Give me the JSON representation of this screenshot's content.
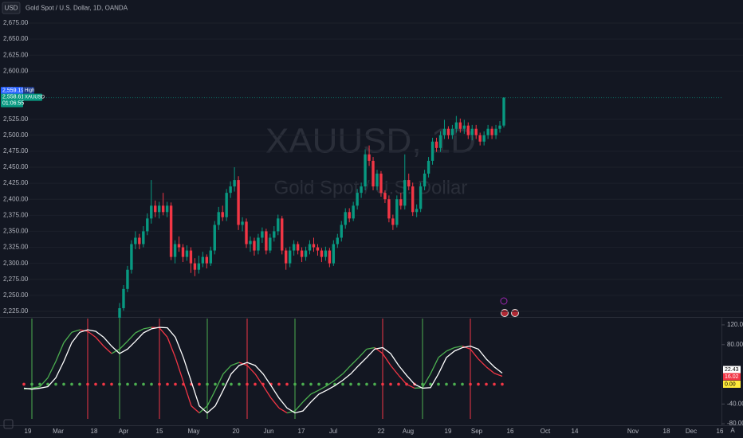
{
  "chart_data": [
    {
      "type": "candlestick",
      "currency": "USD",
      "title": "Gold Spot / U.S. Dollar, 1D, OANDA",
      "watermark": "XAUUSD, 1D",
      "watermark_sub": "Gold Spot / U.S. Dollar",
      "symbol": "XAUUSD",
      "high_text": "High",
      "high_label": {
        "value": 2559.19,
        "label": "2,559.19"
      },
      "last_label": {
        "value": 2558.61,
        "label": "2,558.61"
      },
      "countdown": "01:06:55",
      "up_color": "#089981",
      "down_color": "#f23645",
      "ylim": [
        2216.3,
        2711
      ],
      "yticks": [
        {
          "value": 2675,
          "label": "2,675.00"
        },
        {
          "value": 2650,
          "label": "2,650.00"
        },
        {
          "value": 2625,
          "label": "2,625.00"
        },
        {
          "value": 2600,
          "label": "2,600.00"
        },
        {
          "value": 2525,
          "label": "2,525.00"
        },
        {
          "value": 2500,
          "label": "2,500.00"
        },
        {
          "value": 2475,
          "label": "2,475.00"
        },
        {
          "value": 2450,
          "label": "2,450.00"
        },
        {
          "value": 2425,
          "label": "2,425.00"
        },
        {
          "value": 2400,
          "label": "2,400.00"
        },
        {
          "value": 2375,
          "label": "2,375.00"
        },
        {
          "value": 2350,
          "label": "2,350.00"
        },
        {
          "value": 2325,
          "label": "2,325.00"
        },
        {
          "value": 2300,
          "label": "2,300.00"
        },
        {
          "value": 2275,
          "label": "2,275.00"
        },
        {
          "value": 2250,
          "label": "2,250.00"
        },
        {
          "value": 2225,
          "label": "2,225.00"
        }
      ],
      "grid": true,
      "candles": [
        [
          2215,
          2238,
          2210,
          2230
        ],
        [
          2230,
          2266,
          2226,
          2260
        ],
        [
          2260,
          2296,
          2255,
          2290
        ],
        [
          2290,
          2336,
          2284,
          2330
        ],
        [
          2330,
          2350,
          2322,
          2340
        ],
        [
          2340,
          2346,
          2322,
          2330
        ],
        [
          2330,
          2358,
          2325,
          2350
        ],
        [
          2350,
          2378,
          2344,
          2370
        ],
        [
          2370,
          2430,
          2362,
          2390
        ],
        [
          2390,
          2398,
          2372,
          2380
        ],
        [
          2380,
          2396,
          2370,
          2390
        ],
        [
          2390,
          2410,
          2375,
          2380
        ],
        [
          2380,
          2396,
          2372,
          2390
        ],
        [
          2390,
          2395,
          2305,
          2310
        ],
        [
          2310,
          2336,
          2300,
          2330
        ],
        [
          2330,
          2342,
          2318,
          2325
        ],
        [
          2325,
          2330,
          2302,
          2310
        ],
        [
          2310,
          2328,
          2304,
          2320
        ],
        [
          2320,
          2325,
          2285,
          2300
        ],
        [
          2300,
          2308,
          2280,
          2290
        ],
        [
          2290,
          2312,
          2284,
          2300
        ],
        [
          2300,
          2318,
          2294,
          2310
        ],
        [
          2310,
          2314,
          2292,
          2300
        ],
        [
          2300,
          2326,
          2296,
          2320
        ],
        [
          2320,
          2366,
          2314,
          2360
        ],
        [
          2360,
          2388,
          2352,
          2380
        ],
        [
          2380,
          2390,
          2366,
          2372
        ],
        [
          2372,
          2416,
          2366,
          2410
        ],
        [
          2410,
          2428,
          2402,
          2420
        ],
        [
          2420,
          2450,
          2412,
          2430
        ],
        [
          2430,
          2436,
          2352,
          2360
        ],
        [
          2360,
          2372,
          2350,
          2365
        ],
        [
          2365,
          2370,
          2324,
          2330
        ],
        [
          2330,
          2342,
          2318,
          2335
        ],
        [
          2335,
          2340,
          2312,
          2320
        ],
        [
          2320,
          2346,
          2314,
          2340
        ],
        [
          2340,
          2356,
          2332,
          2350
        ],
        [
          2350,
          2354,
          2314,
          2320
        ],
        [
          2320,
          2346,
          2316,
          2340
        ],
        [
          2340,
          2358,
          2334,
          2350
        ],
        [
          2350,
          2376,
          2344,
          2370
        ],
        [
          2370,
          2374,
          2314,
          2320
        ],
        [
          2320,
          2324,
          2290,
          2300
        ],
        [
          2300,
          2326,
          2294,
          2320
        ],
        [
          2320,
          2336,
          2312,
          2330
        ],
        [
          2330,
          2334,
          2314,
          2320
        ],
        [
          2320,
          2325,
          2302,
          2310
        ],
        [
          2310,
          2326,
          2304,
          2320
        ],
        [
          2320,
          2336,
          2314,
          2330
        ],
        [
          2330,
          2340,
          2318,
          2325
        ],
        [
          2325,
          2330,
          2312,
          2320
        ],
        [
          2320,
          2324,
          2302,
          2310
        ],
        [
          2310,
          2326,
          2304,
          2320
        ],
        [
          2320,
          2324,
          2294,
          2300
        ],
        [
          2300,
          2336,
          2296,
          2330
        ],
        [
          2330,
          2346,
          2324,
          2340
        ],
        [
          2340,
          2366,
          2334,
          2360
        ],
        [
          2360,
          2386,
          2354,
          2380
        ],
        [
          2380,
          2386,
          2364,
          2370
        ],
        [
          2370,
          2396,
          2366,
          2390
        ],
        [
          2390,
          2416,
          2384,
          2410
        ],
        [
          2410,
          2426,
          2402,
          2420
        ],
        [
          2420,
          2478,
          2414,
          2470
        ],
        [
          2470,
          2484,
          2452,
          2460
        ],
        [
          2460,
          2466,
          2414,
          2420
        ],
        [
          2420,
          2446,
          2414,
          2440
        ],
        [
          2440,
          2444,
          2404,
          2410
        ],
        [
          2410,
          2414,
          2394,
          2400
        ],
        [
          2400,
          2406,
          2364,
          2370
        ],
        [
          2370,
          2376,
          2352,
          2360
        ],
        [
          2360,
          2406,
          2356,
          2400
        ],
        [
          2400,
          2410,
          2384,
          2390
        ],
        [
          2390,
          2470,
          2384,
          2430
        ],
        [
          2430,
          2440,
          2414,
          2420
        ],
        [
          2420,
          2426,
          2374,
          2380
        ],
        [
          2380,
          2392,
          2372,
          2385
        ],
        [
          2385,
          2426,
          2380,
          2420
        ],
        [
          2420,
          2446,
          2414,
          2440
        ],
        [
          2440,
          2466,
          2434,
          2460
        ],
        [
          2460,
          2496,
          2454,
          2490
        ],
        [
          2490,
          2496,
          2474,
          2480
        ],
        [
          2480,
          2506,
          2474,
          2500
        ],
        [
          2500,
          2524,
          2494,
          2510
        ],
        [
          2510,
          2514,
          2494,
          2500
        ],
        [
          2500,
          2516,
          2494,
          2510
        ],
        [
          2510,
          2530,
          2504,
          2520
        ],
        [
          2520,
          2526,
          2504,
          2510
        ],
        [
          2510,
          2524,
          2502,
          2515
        ],
        [
          2515,
          2520,
          2494,
          2500
        ],
        [
          2500,
          2516,
          2492,
          2510
        ],
        [
          2510,
          2516,
          2494,
          2500
        ],
        [
          2500,
          2504,
          2484,
          2490
        ],
        [
          2490,
          2506,
          2484,
          2500
        ],
        [
          2500,
          2516,
          2494,
          2510
        ],
        [
          2510,
          2514,
          2494,
          2500
        ],
        [
          2500,
          2516,
          2494,
          2510
        ],
        [
          2510,
          2522,
          2504,
          2515
        ],
        [
          2515,
          2559.19,
          2512,
          2558.61
        ]
      ]
    },
    {
      "type": "line",
      "ylim": [
        -83,
        136
      ],
      "yticks": [
        {
          "value": 120,
          "label": "120.00"
        },
        {
          "value": 80,
          "label": "80.00"
        },
        {
          "value": -40,
          "label": "-40.00"
        },
        {
          "value": -80,
          "label": "-80.00"
        }
      ],
      "series": [
        {
          "color": "#ffffff",
          "value_label": "22.43",
          "values": [
            -8,
            -10,
            -8,
            -5,
            13,
            46,
            84,
            105,
            110,
            107,
            95,
            77,
            62,
            71,
            87,
            104,
            112,
            115,
            114,
            95,
            54,
            5,
            -44,
            -58,
            -44,
            -12,
            21,
            38,
            44,
            38,
            21,
            -3,
            -28,
            -48,
            -58,
            -54,
            -36,
            -20,
            -12,
            -3,
            8,
            21,
            38,
            54,
            71,
            74,
            62,
            38,
            18,
            0,
            -8,
            -7,
            21,
            54,
            67,
            74,
            77,
            71,
            51,
            35,
            22.43
          ]
        },
        {
          "colors": [
            "#4caf50",
            "#f23645"
          ],
          "value_label": "16.02",
          "values": [
            -10,
            -8,
            -5,
            13,
            46,
            84,
            105,
            110,
            107,
            95,
            77,
            62,
            71,
            87,
            104,
            112,
            115,
            114,
            95,
            54,
            5,
            -44,
            -58,
            -44,
            -12,
            21,
            38,
            44,
            38,
            21,
            -3,
            -28,
            -48,
            -58,
            -54,
            -36,
            -20,
            -12,
            -3,
            8,
            21,
            38,
            54,
            71,
            74,
            62,
            38,
            18,
            0,
            -8,
            -7,
            21,
            54,
            67,
            74,
            77,
            71,
            51,
            35,
            22,
            16.02
          ]
        }
      ],
      "zero_label": {
        "value": 0,
        "label": "0.00"
      },
      "time_labels": [
        "19",
        "Mar",
        "18",
        "Apr",
        "15",
        "May",
        "20",
        "Jun",
        "17",
        "Jul",
        "22",
        "Aug",
        "19",
        "Sep",
        "16",
        "Oct",
        "14",
        "Nov",
        "18",
        "Dec",
        "16"
      ]
    }
  ]
}
